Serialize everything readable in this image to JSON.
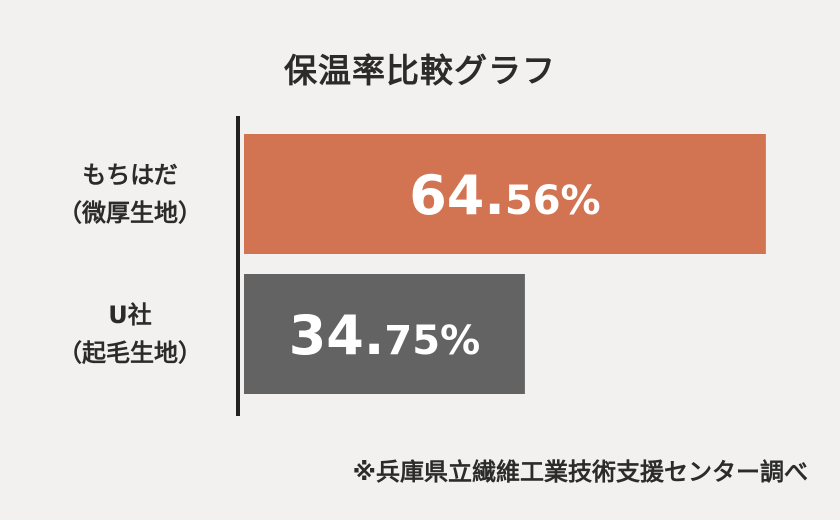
{
  "chart_data": {
    "type": "bar",
    "orientation": "horizontal",
    "title": "保温率比較グラフ",
    "categories": [
      {
        "line1": "もちはだ",
        "line2": "（微厚生地）"
      },
      {
        "line1": "U社",
        "line2": "（起毛生地）"
      }
    ],
    "values": [
      64.56,
      34.75
    ],
    "value_labels": [
      {
        "int": "64.",
        "dec": "56%"
      },
      {
        "int": "34.",
        "dec": "75%"
      }
    ],
    "bar_colors": [
      "#d27352",
      "#636363"
    ],
    "xlim": [
      0,
      72
    ],
    "grid": false,
    "legend": "none"
  },
  "footer": {
    "source": "※兵庫県立繊維工業技術支援センター調べ"
  },
  "colors": {
    "background": "#f3f1ef",
    "axis": "#222222",
    "value_text": "#ffffff"
  }
}
